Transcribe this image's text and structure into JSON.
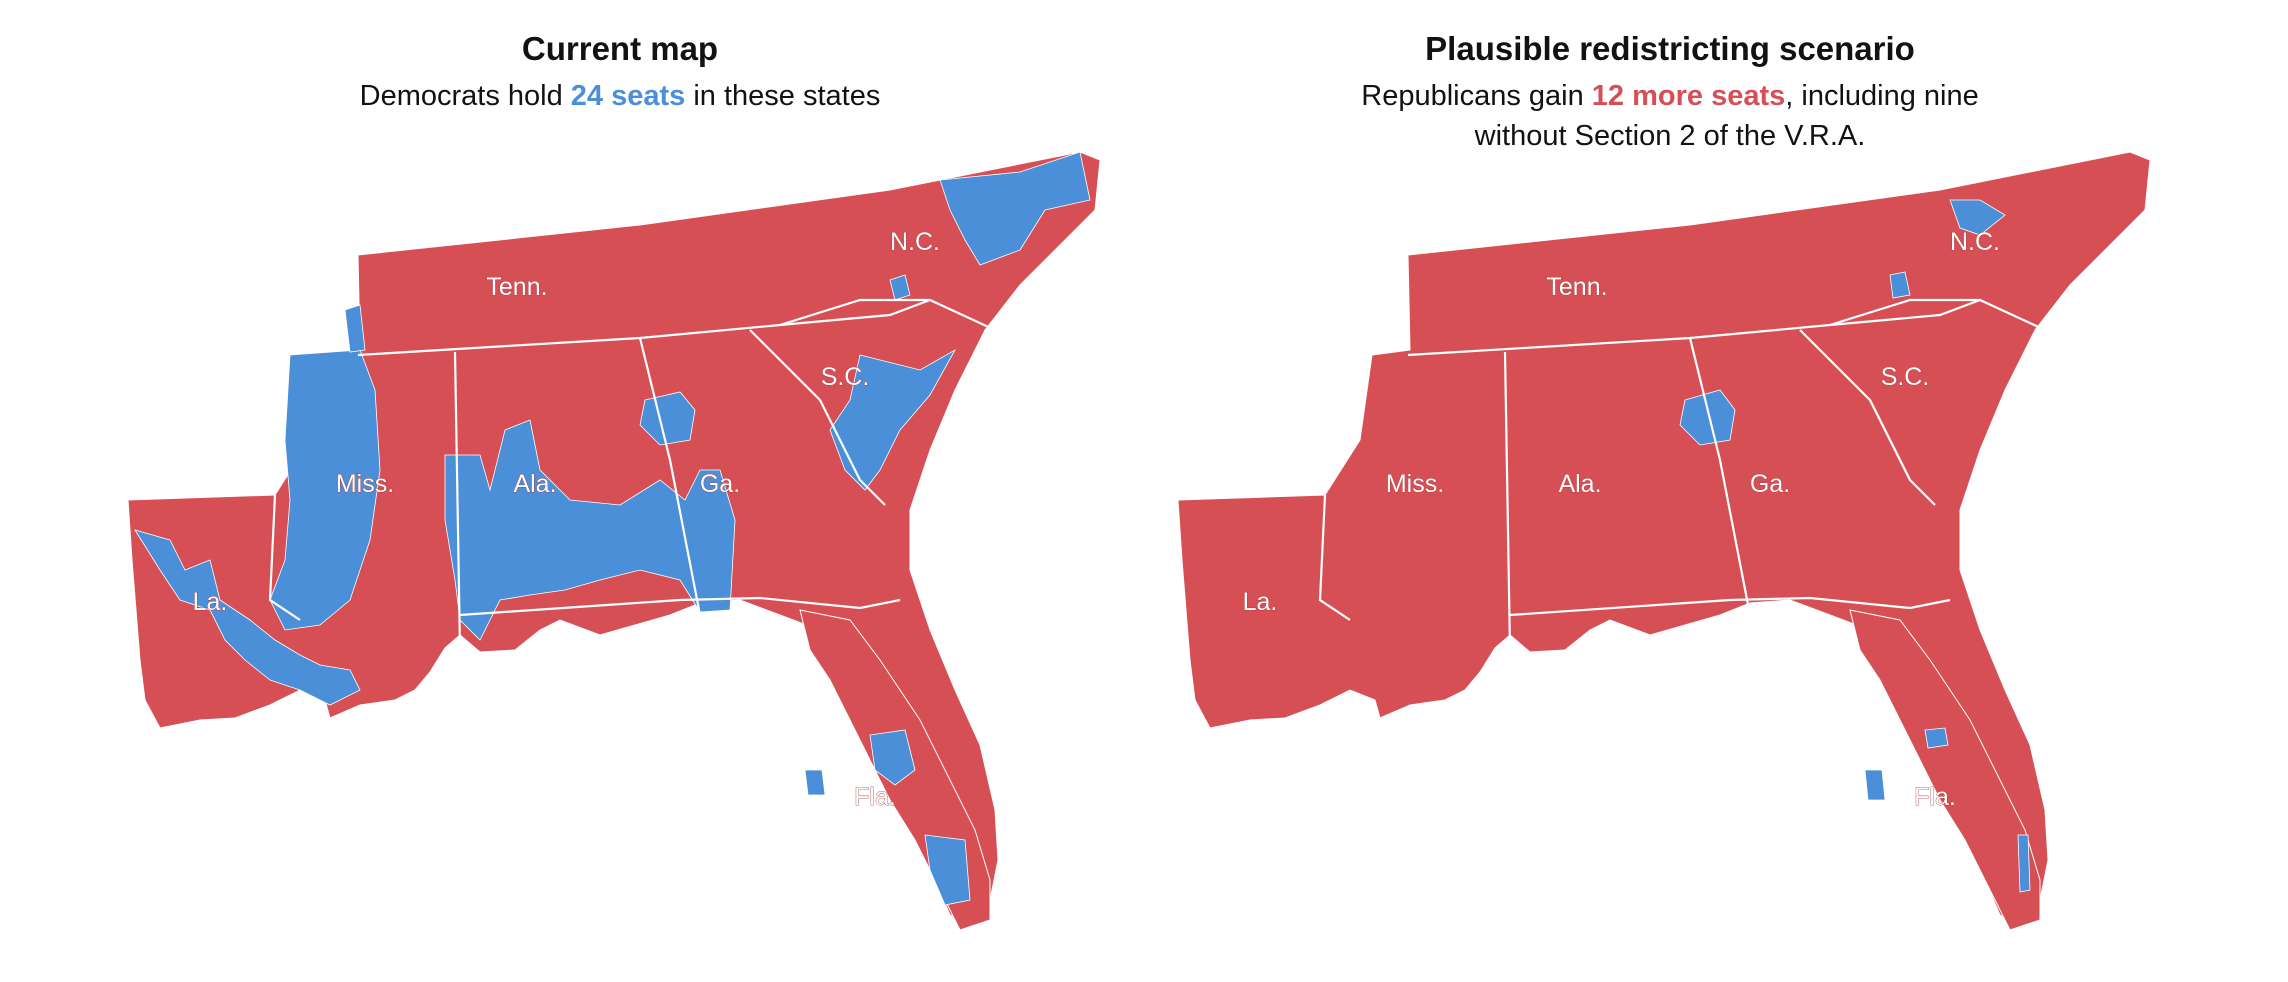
{
  "colors": {
    "rep": "#d64f55",
    "dem": "#4a8fd8",
    "border": "#ffffff",
    "text": "#121212"
  },
  "panels": [
    {
      "title": "Current map",
      "subtitle_pre": "Democrats hold ",
      "subtitle_highlight": "24 seats",
      "subtitle_post": " in these states",
      "subtitle_line2": "",
      "highlight_party": "dem"
    },
    {
      "title": "Plausible redistricting scenario",
      "subtitle_pre": "Republicans gain ",
      "subtitle_highlight": "12 more seats",
      "subtitle_post": ", including nine",
      "subtitle_line2": "without Section 2 of the V.R.A.",
      "highlight_party": "rep"
    }
  ],
  "state_labels": {
    "tn": "Tenn.",
    "nc": "N.C.",
    "sc": "S.C.",
    "ms": "Miss.",
    "al": "Ala.",
    "ga": "Ga.",
    "la": "La.",
    "fl": "Fla."
  }
}
